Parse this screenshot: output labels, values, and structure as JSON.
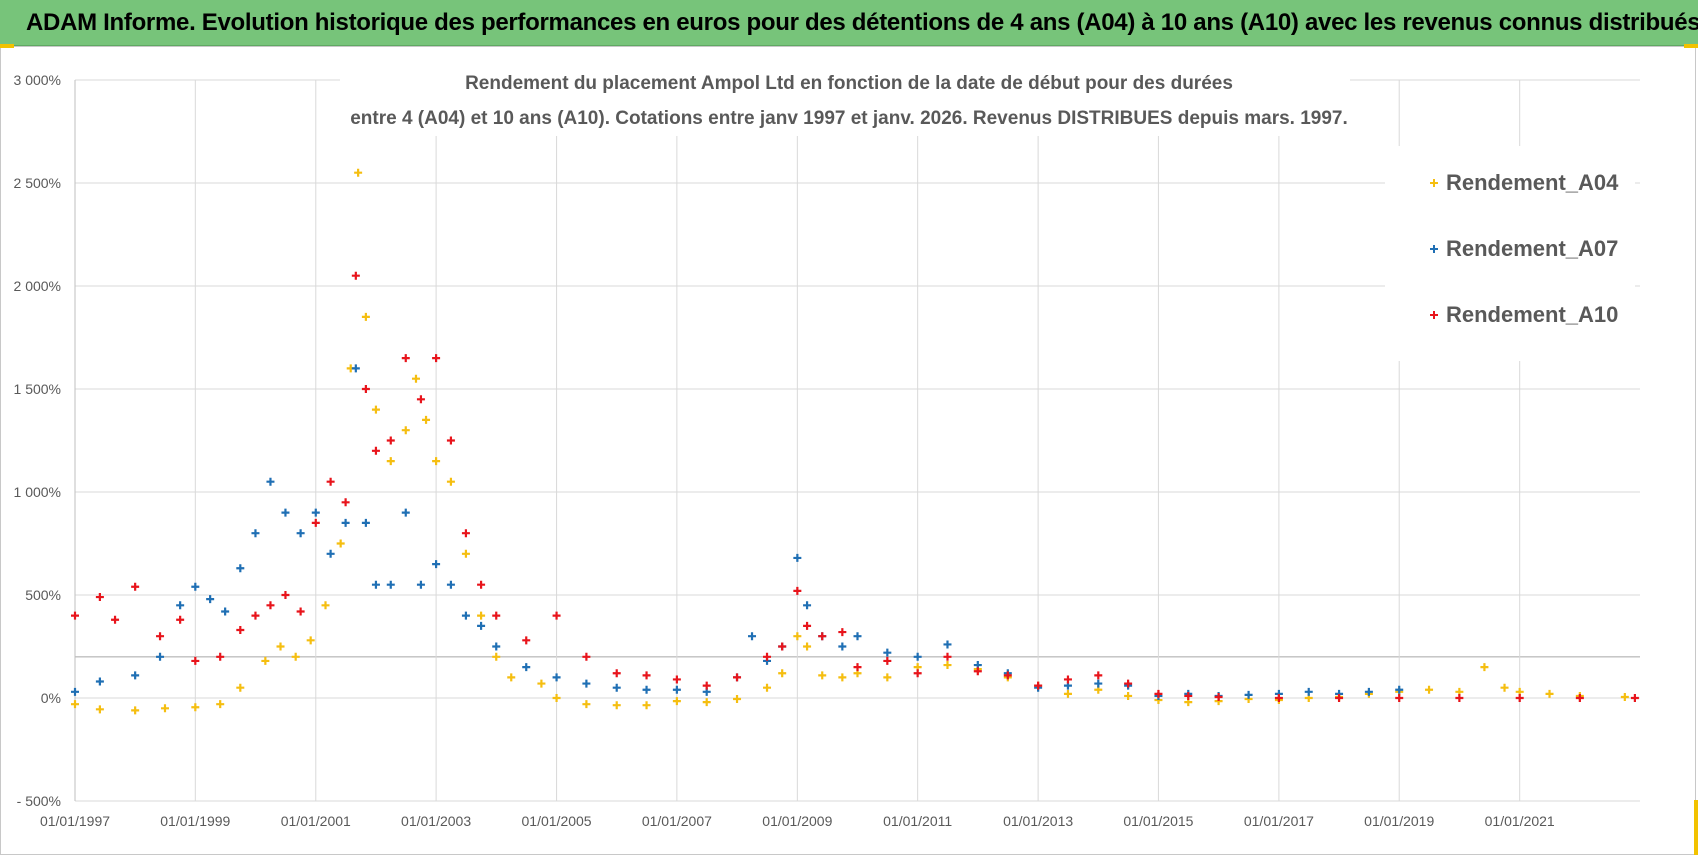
{
  "banner": {
    "title": "ADAM Informe. Evolution historique des performances en euros pour des détentions de 4 ans (A04) à 10 ans (A10) avec les revenus connus distribués"
  },
  "colors": {
    "banner_bg": "#77c47a",
    "a04": "#f5be10",
    "a07": "#1f6fb4",
    "a10": "#e8141b"
  },
  "chart_data": {
    "type": "scatter",
    "marker": "plus",
    "title_line1": "Rendement du placement Ampol Ltd en fonction de la date de début pour des durées",
    "title_line2": "entre 4 (A04) et 10 ans (A10).  Cotations entre janv 1997 et janv. 2026. Revenus DISTRIBUES depuis mars. 1997.",
    "xlabel": "",
    "ylabel": "",
    "xlim": [
      "1997-01-01",
      "2023-01-01"
    ],
    "ylim": [
      -500,
      3000
    ],
    "y_ticks": [
      -500,
      0,
      500,
      1000,
      1500,
      2000,
      2500,
      3000
    ],
    "y_tick_labels": [
      "- 500%",
      "0%",
      "500%",
      "1 000%",
      "1 500%",
      "2 000%",
      "2 500%",
      "3 000%"
    ],
    "x_tick_labels": [
      "01/01/1997",
      "01/01/1999",
      "01/01/2001",
      "01/01/2003",
      "01/01/2005",
      "01/01/2007",
      "01/01/2009",
      "01/01/2011",
      "01/01/2013",
      "01/01/2015",
      "01/01/2017",
      "01/01/2019",
      "01/01/2021"
    ],
    "x_ticks": [
      "1997-01-01",
      "1999-01-01",
      "2001-01-01",
      "2003-01-01",
      "2005-01-01",
      "2007-01-01",
      "2009-01-01",
      "2011-01-01",
      "2013-01-01",
      "2015-01-01",
      "2017-01-01",
      "2019-01-01",
      "2021-01-01"
    ],
    "grid": true,
    "legend_position": "right",
    "series": [
      {
        "name": "Rendement_A04",
        "points": [
          [
            "1997-01-01",
            -30
          ],
          [
            "1997-06-01",
            -55
          ],
          [
            "1998-01-01",
            -60
          ],
          [
            "1998-07-01",
            -50
          ],
          [
            "1999-01-01",
            -45
          ],
          [
            "1999-06-01",
            -30
          ],
          [
            "1999-10-01",
            50
          ],
          [
            "2000-03-01",
            180
          ],
          [
            "2000-06-01",
            250
          ],
          [
            "2000-09-01",
            200
          ],
          [
            "2000-12-01",
            280
          ],
          [
            "2001-03-01",
            450
          ],
          [
            "2001-06-01",
            750
          ],
          [
            "2001-08-01",
            1600
          ],
          [
            "2001-09-15",
            2550
          ],
          [
            "2001-11-01",
            1850
          ],
          [
            "2002-01-01",
            1400
          ],
          [
            "2002-04-01",
            1150
          ],
          [
            "2002-07-01",
            1300
          ],
          [
            "2002-09-01",
            1550
          ],
          [
            "2002-11-01",
            1350
          ],
          [
            "2003-01-01",
            1150
          ],
          [
            "2003-04-01",
            1050
          ],
          [
            "2003-07-01",
            700
          ],
          [
            "2003-10-01",
            400
          ],
          [
            "2004-01-01",
            200
          ],
          [
            "2004-04-01",
            100
          ],
          [
            "2004-10-01",
            70
          ],
          [
            "2005-01-01",
            0
          ],
          [
            "2005-07-01",
            -30
          ],
          [
            "2006-01-01",
            -35
          ],
          [
            "2006-07-01",
            -35
          ],
          [
            "2007-01-01",
            -15
          ],
          [
            "2007-07-01",
            -20
          ],
          [
            "2008-01-01",
            -5
          ],
          [
            "2008-07-01",
            50
          ],
          [
            "2008-10-01",
            120
          ],
          [
            "2009-01-01",
            300
          ],
          [
            "2009-03-01",
            250
          ],
          [
            "2009-06-01",
            110
          ],
          [
            "2009-10-01",
            100
          ],
          [
            "2010-01-01",
            120
          ],
          [
            "2010-07-01",
            100
          ],
          [
            "2011-01-01",
            150
          ],
          [
            "2011-07-01",
            160
          ],
          [
            "2012-01-01",
            140
          ],
          [
            "2012-07-01",
            100
          ],
          [
            "2013-01-01",
            60
          ],
          [
            "2013-07-01",
            20
          ],
          [
            "2014-01-01",
            40
          ],
          [
            "2014-07-01",
            10
          ],
          [
            "2015-01-01",
            -10
          ],
          [
            "2015-07-01",
            -20
          ],
          [
            "2016-01-01",
            -15
          ],
          [
            "2016-07-01",
            -5
          ],
          [
            "2017-01-01",
            -10
          ],
          [
            "2017-07-01",
            0
          ],
          [
            "2018-01-01",
            5
          ],
          [
            "2018-07-01",
            20
          ],
          [
            "2019-01-01",
            30
          ],
          [
            "2019-07-01",
            40
          ],
          [
            "2020-01-01",
            30
          ],
          [
            "2020-06-01",
            150
          ],
          [
            "2020-10-01",
            50
          ],
          [
            "2021-01-01",
            30
          ],
          [
            "2021-07-01",
            20
          ],
          [
            "2022-01-01",
            10
          ],
          [
            "2022-10-01",
            5
          ]
        ]
      },
      {
        "name": "Rendement_A07",
        "points": [
          [
            "1997-01-01",
            30
          ],
          [
            "1997-06-01",
            80
          ],
          [
            "1998-01-01",
            110
          ],
          [
            "1998-06-01",
            200
          ],
          [
            "1998-10-01",
            450
          ],
          [
            "1999-01-01",
            540
          ],
          [
            "1999-04-01",
            480
          ],
          [
            "1999-07-01",
            420
          ],
          [
            "1999-10-01",
            630
          ],
          [
            "2000-01-01",
            800
          ],
          [
            "2000-04-01",
            1050
          ],
          [
            "2000-07-01",
            900
          ],
          [
            "2000-10-01",
            800
          ],
          [
            "2001-01-01",
            900
          ],
          [
            "2001-04-01",
            700
          ],
          [
            "2001-07-01",
            850
          ],
          [
            "2001-09-01",
            1600
          ],
          [
            "2001-11-01",
            850
          ],
          [
            "2002-01-01",
            550
          ],
          [
            "2002-04-01",
            550
          ],
          [
            "2002-07-01",
            900
          ],
          [
            "2002-10-01",
            550
          ],
          [
            "2003-01-01",
            650
          ],
          [
            "2003-04-01",
            550
          ],
          [
            "2003-07-01",
            400
          ],
          [
            "2003-10-01",
            350
          ],
          [
            "2004-01-01",
            250
          ],
          [
            "2004-07-01",
            150
          ],
          [
            "2005-01-01",
            100
          ],
          [
            "2005-07-01",
            70
          ],
          [
            "2006-01-01",
            50
          ],
          [
            "2006-07-01",
            40
          ],
          [
            "2007-01-01",
            40
          ],
          [
            "2007-07-01",
            30
          ],
          [
            "2008-01-01",
            100
          ],
          [
            "2008-04-01",
            300
          ],
          [
            "2008-07-01",
            180
          ],
          [
            "2008-10-01",
            250
          ],
          [
            "2009-01-01",
            680
          ],
          [
            "2009-03-01",
            450
          ],
          [
            "2009-06-01",
            300
          ],
          [
            "2009-10-01",
            250
          ],
          [
            "2010-01-01",
            300
          ],
          [
            "2010-07-01",
            220
          ],
          [
            "2011-01-01",
            200
          ],
          [
            "2011-07-01",
            260
          ],
          [
            "2012-01-01",
            160
          ],
          [
            "2012-07-01",
            120
          ],
          [
            "2013-01-01",
            50
          ],
          [
            "2013-07-01",
            60
          ],
          [
            "2014-01-01",
            70
          ],
          [
            "2014-07-01",
            60
          ],
          [
            "2015-01-01",
            10
          ],
          [
            "2015-07-01",
            20
          ],
          [
            "2016-01-01",
            10
          ],
          [
            "2016-07-01",
            15
          ],
          [
            "2017-01-01",
            20
          ],
          [
            "2017-07-01",
            30
          ],
          [
            "2018-01-01",
            20
          ],
          [
            "2018-07-01",
            30
          ],
          [
            "2019-01-01",
            40
          ]
        ]
      },
      {
        "name": "Rendement_A10",
        "points": [
          [
            "1997-01-01",
            400
          ],
          [
            "1997-06-01",
            490
          ],
          [
            "1997-09-01",
            380
          ],
          [
            "1998-01-01",
            540
          ],
          [
            "1998-06-01",
            300
          ],
          [
            "1998-10-01",
            380
          ],
          [
            "1999-01-01",
            180
          ],
          [
            "1999-06-01",
            200
          ],
          [
            "1999-10-01",
            330
          ],
          [
            "2000-01-01",
            400
          ],
          [
            "2000-04-01",
            450
          ],
          [
            "2000-07-01",
            500
          ],
          [
            "2000-10-01",
            420
          ],
          [
            "2001-01-01",
            850
          ],
          [
            "2001-04-01",
            1050
          ],
          [
            "2001-07-01",
            950
          ],
          [
            "2001-09-01",
            2050
          ],
          [
            "2001-11-01",
            1500
          ],
          [
            "2002-01-01",
            1200
          ],
          [
            "2002-04-01",
            1250
          ],
          [
            "2002-07-01",
            1650
          ],
          [
            "2002-10-01",
            1450
          ],
          [
            "2003-01-01",
            1650
          ],
          [
            "2003-04-01",
            1250
          ],
          [
            "2003-07-01",
            800
          ],
          [
            "2003-10-01",
            550
          ],
          [
            "2004-01-01",
            400
          ],
          [
            "2004-07-01",
            280
          ],
          [
            "2005-01-01",
            400
          ],
          [
            "2005-07-01",
            200
          ],
          [
            "2006-01-01",
            120
          ],
          [
            "2006-07-01",
            110
          ],
          [
            "2007-01-01",
            90
          ],
          [
            "2007-07-01",
            60
          ],
          [
            "2008-01-01",
            100
          ],
          [
            "2008-07-01",
            200
          ],
          [
            "2008-10-01",
            250
          ],
          [
            "2009-01-01",
            520
          ],
          [
            "2009-03-01",
            350
          ],
          [
            "2009-06-01",
            300
          ],
          [
            "2009-10-01",
            320
          ],
          [
            "2010-01-01",
            150
          ],
          [
            "2010-07-01",
            180
          ],
          [
            "2011-01-01",
            120
          ],
          [
            "2011-07-01",
            200
          ],
          [
            "2012-01-01",
            130
          ],
          [
            "2012-07-01",
            110
          ],
          [
            "2013-01-01",
            60
          ],
          [
            "2013-07-01",
            90
          ],
          [
            "2014-01-01",
            110
          ],
          [
            "2014-07-01",
            70
          ],
          [
            "2015-01-01",
            20
          ],
          [
            "2015-07-01",
            10
          ],
          [
            "2016-01-01",
            5
          ],
          [
            "2017-01-01",
            0
          ],
          [
            "2018-01-01",
            0
          ],
          [
            "2019-01-01",
            0
          ],
          [
            "2020-01-01",
            0
          ],
          [
            "2021-01-01",
            0
          ],
          [
            "2022-01-01",
            0
          ],
          [
            "2022-12-01",
            0
          ]
        ]
      }
    ]
  }
}
